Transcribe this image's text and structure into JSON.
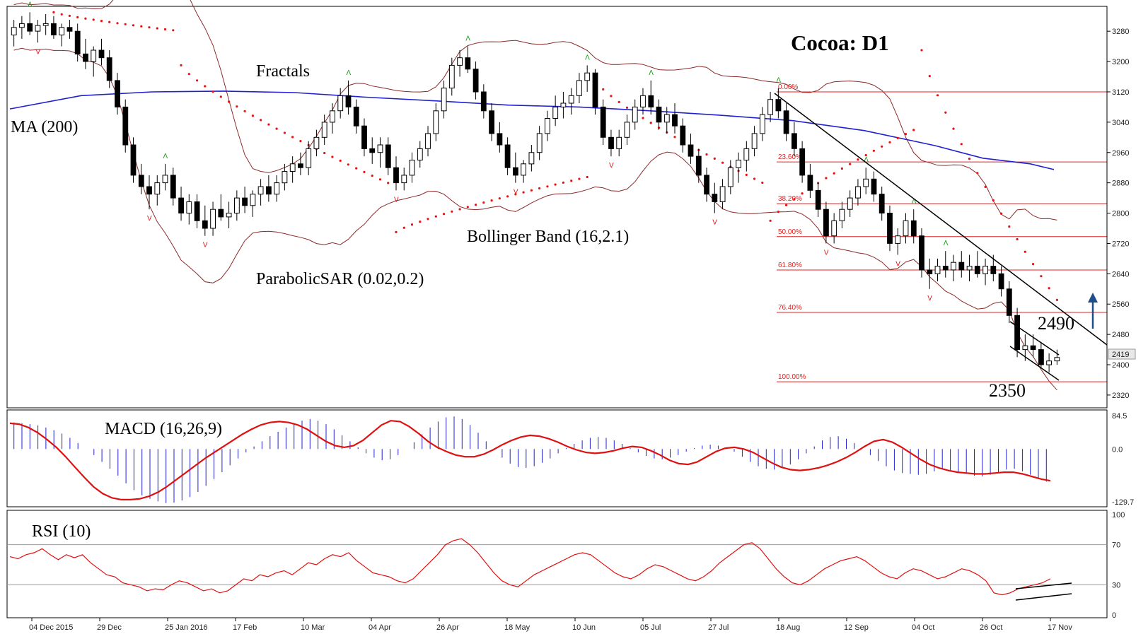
{
  "chart_data": {
    "type": "candlestick",
    "title": "Cocoa: D1",
    "instrument": "Cocoa",
    "timeframe": "D1",
    "price_axis": {
      "ticks": [
        2320,
        2400,
        2480,
        2560,
        2640,
        2720,
        2800,
        2880,
        2960,
        3040,
        3120,
        3200,
        3280
      ],
      "range": [
        2290,
        3340
      ]
    },
    "current_price": "2419",
    "dates": [
      "04 Dec 2015",
      "29 Dec",
      "25 Jan 2016",
      "17 Feb",
      "10 Mar",
      "04 Apr",
      "26 Apr",
      "18 May",
      "10 Jun",
      "05 Jul",
      "27 Jul",
      "18 Aug",
      "12 Sep",
      "04 Oct",
      "26 Oct",
      "17 Nov"
    ],
    "indicators": {
      "ma": "MA (200)",
      "fractals": "Fractals",
      "bollinger": "Bollinger Band (16,2.1)",
      "sar": "ParabolicSAR (0.02,0.2)",
      "macd": "MACD (16,26,9)",
      "rsi": "RSI (10)"
    },
    "fibonacci": [
      {
        "label": "0.00%",
        "price": 3120
      },
      {
        "label": "23.60%",
        "price": 2935
      },
      {
        "label": "38.20%",
        "price": 2825
      },
      {
        "label": "50.00%",
        "price": 2738
      },
      {
        "label": "61.80%",
        "price": 2650
      },
      {
        "label": "76.40%",
        "price": 2538
      },
      {
        "label": "100.00%",
        "price": 2355
      }
    ],
    "annotations": {
      "resistance": "2490",
      "support": "2350"
    },
    "macd_axis": {
      "ticks": [
        "84.5",
        "0.0",
        "-129.7"
      ],
      "range": [
        -129.7,
        84.5
      ]
    },
    "rsi_axis": {
      "ticks": [
        "100",
        "70",
        "30",
        "0"
      ],
      "range": [
        0,
        100
      ]
    },
    "ma200": [
      {
        "i": 0,
        "p": 3075
      },
      {
        "i": 60,
        "p": 3110
      },
      {
        "i": 120,
        "p": 3120
      },
      {
        "i": 180,
        "p": 3122
      },
      {
        "i": 240,
        "p": 3118
      },
      {
        "i": 300,
        "p": 3106
      },
      {
        "i": 360,
        "p": 3096
      },
      {
        "i": 420,
        "p": 3085
      },
      {
        "i": 480,
        "p": 3080
      },
      {
        "i": 540,
        "p": 3070
      },
      {
        "i": 600,
        "p": 3058
      },
      {
        "i": 660,
        "p": 3044
      },
      {
        "i": 720,
        "p": 3018
      },
      {
        "i": 780,
        "p": 2978
      },
      {
        "i": 820,
        "p": 2945
      },
      {
        "i": 860,
        "p": 2930
      },
      {
        "i": 880,
        "p": 2915
      }
    ],
    "candles": [
      {
        "o": 3270,
        "h": 3310,
        "l": 3240,
        "c": 3290
      },
      {
        "o": 3290,
        "h": 3320,
        "l": 3260,
        "c": 3300
      },
      {
        "o": 3300,
        "h": 3330,
        "l": 3270,
        "c": 3280
      },
      {
        "o": 3280,
        "h": 3310,
        "l": 3250,
        "c": 3295
      },
      {
        "o": 3295,
        "h": 3325,
        "l": 3270,
        "c": 3300
      },
      {
        "o": 3300,
        "h": 3320,
        "l": 3260,
        "c": 3270
      },
      {
        "o": 3270,
        "h": 3300,
        "l": 3240,
        "c": 3290
      },
      {
        "o": 3290,
        "h": 3310,
        "l": 3260,
        "c": 3280
      },
      {
        "o": 3280,
        "h": 3300,
        "l": 3200,
        "c": 3220
      },
      {
        "o": 3220,
        "h": 3260,
        "l": 3180,
        "c": 3200
      },
      {
        "o": 3200,
        "h": 3240,
        "l": 3160,
        "c": 3230
      },
      {
        "o": 3230,
        "h": 3260,
        "l": 3190,
        "c": 3210
      },
      {
        "o": 3210,
        "h": 3230,
        "l": 3130,
        "c": 3150
      },
      {
        "o": 3150,
        "h": 3170,
        "l": 3060,
        "c": 3080
      },
      {
        "o": 3080,
        "h": 3100,
        "l": 2960,
        "c": 2980
      },
      {
        "o": 2980,
        "h": 3000,
        "l": 2880,
        "c": 2900
      },
      {
        "o": 2900,
        "h": 2930,
        "l": 2850,
        "c": 2870
      },
      {
        "o": 2870,
        "h": 2900,
        "l": 2810,
        "c": 2850
      },
      {
        "o": 2850,
        "h": 2900,
        "l": 2820,
        "c": 2880
      },
      {
        "o": 2880,
        "h": 2930,
        "l": 2860,
        "c": 2900
      },
      {
        "o": 2900,
        "h": 2920,
        "l": 2820,
        "c": 2840
      },
      {
        "o": 2840,
        "h": 2870,
        "l": 2780,
        "c": 2800
      },
      {
        "o": 2800,
        "h": 2850,
        "l": 2770,
        "c": 2830
      },
      {
        "o": 2830,
        "h": 2850,
        "l": 2760,
        "c": 2780
      },
      {
        "o": 2780,
        "h": 2820,
        "l": 2740,
        "c": 2760
      },
      {
        "o": 2760,
        "h": 2830,
        "l": 2740,
        "c": 2810
      },
      {
        "o": 2810,
        "h": 2850,
        "l": 2780,
        "c": 2790
      },
      {
        "o": 2790,
        "h": 2830,
        "l": 2760,
        "c": 2800
      },
      {
        "o": 2800,
        "h": 2860,
        "l": 2780,
        "c": 2840
      },
      {
        "o": 2840,
        "h": 2870,
        "l": 2800,
        "c": 2820
      },
      {
        "o": 2820,
        "h": 2860,
        "l": 2790,
        "c": 2850
      },
      {
        "o": 2850,
        "h": 2890,
        "l": 2820,
        "c": 2870
      },
      {
        "o": 2870,
        "h": 2900,
        "l": 2830,
        "c": 2850
      },
      {
        "o": 2850,
        "h": 2900,
        "l": 2830,
        "c": 2880
      },
      {
        "o": 2880,
        "h": 2930,
        "l": 2860,
        "c": 2910
      },
      {
        "o": 2910,
        "h": 2950,
        "l": 2880,
        "c": 2930
      },
      {
        "o": 2930,
        "h": 2960,
        "l": 2900,
        "c": 2920
      },
      {
        "o": 2920,
        "h": 2990,
        "l": 2900,
        "c": 2970
      },
      {
        "o": 2970,
        "h": 3020,
        "l": 2950,
        "c": 3000
      },
      {
        "o": 3000,
        "h": 3060,
        "l": 2980,
        "c": 3040
      },
      {
        "o": 3040,
        "h": 3090,
        "l": 3010,
        "c": 3070
      },
      {
        "o": 3070,
        "h": 3130,
        "l": 3050,
        "c": 3110
      },
      {
        "o": 3110,
        "h": 3150,
        "l": 3060,
        "c": 3080
      },
      {
        "o": 3080,
        "h": 3100,
        "l": 3010,
        "c": 3030
      },
      {
        "o": 3030,
        "h": 3050,
        "l": 2950,
        "c": 2970
      },
      {
        "o": 2970,
        "h": 3000,
        "l": 2930,
        "c": 2960
      },
      {
        "o": 2960,
        "h": 3000,
        "l": 2920,
        "c": 2980
      },
      {
        "o": 2980,
        "h": 3000,
        "l": 2900,
        "c": 2920
      },
      {
        "o": 2920,
        "h": 2950,
        "l": 2860,
        "c": 2880
      },
      {
        "o": 2880,
        "h": 2920,
        "l": 2860,
        "c": 2900
      },
      {
        "o": 2900,
        "h": 2960,
        "l": 2880,
        "c": 2940
      },
      {
        "o": 2940,
        "h": 2990,
        "l": 2920,
        "c": 2970
      },
      {
        "o": 2970,
        "h": 3030,
        "l": 2950,
        "c": 3010
      },
      {
        "o": 3010,
        "h": 3090,
        "l": 2990,
        "c": 3070
      },
      {
        "o": 3070,
        "h": 3150,
        "l": 3050,
        "c": 3130
      },
      {
        "o": 3130,
        "h": 3210,
        "l": 3110,
        "c": 3190
      },
      {
        "o": 3190,
        "h": 3230,
        "l": 3160,
        "c": 3210
      },
      {
        "o": 3210,
        "h": 3240,
        "l": 3170,
        "c": 3180
      },
      {
        "o": 3180,
        "h": 3200,
        "l": 3100,
        "c": 3120
      },
      {
        "o": 3120,
        "h": 3140,
        "l": 3050,
        "c": 3070
      },
      {
        "o": 3070,
        "h": 3090,
        "l": 2990,
        "c": 3010
      },
      {
        "o": 3010,
        "h": 3040,
        "l": 2960,
        "c": 2980
      },
      {
        "o": 2980,
        "h": 3000,
        "l": 2900,
        "c": 2920
      },
      {
        "o": 2920,
        "h": 2960,
        "l": 2880,
        "c": 2900
      },
      {
        "o": 2900,
        "h": 2940,
        "l": 2880,
        "c": 2930
      },
      {
        "o": 2930,
        "h": 2980,
        "l": 2910,
        "c": 2960
      },
      {
        "o": 2960,
        "h": 3030,
        "l": 2940,
        "c": 3010
      },
      {
        "o": 3010,
        "h": 3070,
        "l": 2990,
        "c": 3050
      },
      {
        "o": 3050,
        "h": 3110,
        "l": 3030,
        "c": 3080
      },
      {
        "o": 3080,
        "h": 3120,
        "l": 3050,
        "c": 3090
      },
      {
        "o": 3090,
        "h": 3130,
        "l": 3060,
        "c": 3110
      },
      {
        "o": 3110,
        "h": 3170,
        "l": 3090,
        "c": 3150
      },
      {
        "o": 3150,
        "h": 3190,
        "l": 3120,
        "c": 3170
      },
      {
        "o": 3170,
        "h": 3180,
        "l": 3060,
        "c": 3080
      },
      {
        "o": 3080,
        "h": 3100,
        "l": 2980,
        "c": 3000
      },
      {
        "o": 3000,
        "h": 3020,
        "l": 2950,
        "c": 2970
      },
      {
        "o": 2970,
        "h": 3020,
        "l": 2950,
        "c": 3000
      },
      {
        "o": 3000,
        "h": 3060,
        "l": 2980,
        "c": 3040
      },
      {
        "o": 3040,
        "h": 3100,
        "l": 3020,
        "c": 3080
      },
      {
        "o": 3080,
        "h": 3130,
        "l": 3060,
        "c": 3110
      },
      {
        "o": 3110,
        "h": 3150,
        "l": 3060,
        "c": 3080
      },
      {
        "o": 3080,
        "h": 3100,
        "l": 3020,
        "c": 3040
      },
      {
        "o": 3040,
        "h": 3080,
        "l": 3010,
        "c": 3060
      },
      {
        "o": 3060,
        "h": 3090,
        "l": 3010,
        "c": 3030
      },
      {
        "o": 3030,
        "h": 3050,
        "l": 2960,
        "c": 2980
      },
      {
        "o": 2980,
        "h": 3010,
        "l": 2930,
        "c": 2950
      },
      {
        "o": 2950,
        "h": 2970,
        "l": 2880,
        "c": 2900
      },
      {
        "o": 2900,
        "h": 2920,
        "l": 2830,
        "c": 2850
      },
      {
        "o": 2850,
        "h": 2880,
        "l": 2800,
        "c": 2830
      },
      {
        "o": 2830,
        "h": 2890,
        "l": 2810,
        "c": 2870
      },
      {
        "o": 2870,
        "h": 2940,
        "l": 2850,
        "c": 2920
      },
      {
        "o": 2920,
        "h": 2960,
        "l": 2880,
        "c": 2940
      },
      {
        "o": 2940,
        "h": 2990,
        "l": 2910,
        "c": 2970
      },
      {
        "o": 2970,
        "h": 3030,
        "l": 2950,
        "c": 3010
      },
      {
        "o": 3010,
        "h": 3080,
        "l": 2990,
        "c": 3060
      },
      {
        "o": 3060,
        "h": 3120,
        "l": 3040,
        "c": 3100
      },
      {
        "o": 3100,
        "h": 3130,
        "l": 3050,
        "c": 3070
      },
      {
        "o": 3070,
        "h": 3090,
        "l": 2990,
        "c": 3010
      },
      {
        "o": 3010,
        "h": 3040,
        "l": 2950,
        "c": 2970
      },
      {
        "o": 2970,
        "h": 2990,
        "l": 2880,
        "c": 2900
      },
      {
        "o": 2900,
        "h": 2930,
        "l": 2840,
        "c": 2860
      },
      {
        "o": 2860,
        "h": 2880,
        "l": 2790,
        "c": 2810
      },
      {
        "o": 2810,
        "h": 2830,
        "l": 2720,
        "c": 2740
      },
      {
        "o": 2740,
        "h": 2800,
        "l": 2720,
        "c": 2780
      },
      {
        "o": 2780,
        "h": 2830,
        "l": 2760,
        "c": 2810
      },
      {
        "o": 2810,
        "h": 2860,
        "l": 2790,
        "c": 2840
      },
      {
        "o": 2840,
        "h": 2890,
        "l": 2820,
        "c": 2870
      },
      {
        "o": 2870,
        "h": 2920,
        "l": 2850,
        "c": 2890
      },
      {
        "o": 2890,
        "h": 2910,
        "l": 2830,
        "c": 2850
      },
      {
        "o": 2850,
        "h": 2870,
        "l": 2780,
        "c": 2800
      },
      {
        "o": 2800,
        "h": 2820,
        "l": 2700,
        "c": 2720
      },
      {
        "o": 2720,
        "h": 2760,
        "l": 2690,
        "c": 2740
      },
      {
        "o": 2740,
        "h": 2800,
        "l": 2720,
        "c": 2780
      },
      {
        "o": 2780,
        "h": 2810,
        "l": 2720,
        "c": 2740
      },
      {
        "o": 2740,
        "h": 2760,
        "l": 2630,
        "c": 2650
      },
      {
        "o": 2650,
        "h": 2680,
        "l": 2600,
        "c": 2640
      },
      {
        "o": 2640,
        "h": 2680,
        "l": 2620,
        "c": 2660
      },
      {
        "o": 2660,
        "h": 2700,
        "l": 2630,
        "c": 2650
      },
      {
        "o": 2650,
        "h": 2690,
        "l": 2620,
        "c": 2670
      },
      {
        "o": 2670,
        "h": 2700,
        "l": 2630,
        "c": 2650
      },
      {
        "o": 2650,
        "h": 2690,
        "l": 2620,
        "c": 2660
      },
      {
        "o": 2660,
        "h": 2700,
        "l": 2630,
        "c": 2640
      },
      {
        "o": 2640,
        "h": 2680,
        "l": 2610,
        "c": 2660
      },
      {
        "o": 2660,
        "h": 2690,
        "l": 2620,
        "c": 2640
      },
      {
        "o": 2640,
        "h": 2660,
        "l": 2580,
        "c": 2600
      },
      {
        "o": 2600,
        "h": 2620,
        "l": 2510,
        "c": 2530
      },
      {
        "o": 2530,
        "h": 2550,
        "l": 2420,
        "c": 2440
      },
      {
        "o": 2440,
        "h": 2480,
        "l": 2410,
        "c": 2450
      },
      {
        "o": 2450,
        "h": 2480,
        "l": 2420,
        "c": 2440
      },
      {
        "o": 2440,
        "h": 2460,
        "l": 2390,
        "c": 2400
      },
      {
        "o": 2400,
        "h": 2430,
        "l": 2380,
        "c": 2410
      },
      {
        "o": 2410,
        "h": 2440,
        "l": 2400,
        "c": 2419
      }
    ],
    "sar_segments": [
      {
        "from": 0.04,
        "to": 0.16,
        "start": 3330,
        "end": 3280
      },
      {
        "from": 0.16,
        "to": 0.36,
        "start": 3190,
        "end": 2870
      },
      {
        "from": 0.36,
        "to": 0.55,
        "start": 2750,
        "end": 2900
      },
      {
        "from": 0.55,
        "to": 0.72,
        "start": 3150,
        "end": 2870
      },
      {
        "from": 0.72,
        "to": 0.86,
        "start": 2780,
        "end": 3030
      },
      {
        "from": 0.86,
        "to": 1.0,
        "start": 3230,
        "end": 2540
      }
    ],
    "macd_hist": [
      62,
      60,
      58,
      55,
      50,
      44,
      36,
      26,
      14,
      0,
      -14,
      -30,
      -46,
      -62,
      -80,
      -96,
      -108,
      -116,
      -122,
      -126,
      -125,
      -120,
      -112,
      -100,
      -86,
      -70,
      -54,
      -38,
      -22,
      -8,
      6,
      18,
      30,
      40,
      50,
      60,
      66,
      70,
      66,
      58,
      46,
      32,
      18,
      4,
      -10,
      -20,
      -26,
      -24,
      -14,
      0,
      16,
      34,
      50,
      64,
      74,
      76,
      70,
      56,
      38,
      18,
      -2,
      -20,
      -34,
      -42,
      -44,
      -40,
      -32,
      -22,
      -10,
      2,
      12,
      20,
      26,
      28,
      26,
      20,
      12,
      2,
      -8,
      -16,
      -22,
      -24,
      -20,
      -14,
      -6,
      2,
      8,
      10,
      8,
      2,
      -6,
      -18,
      -30,
      -40,
      -46,
      -48,
      -44,
      -36,
      -24,
      -10,
      6,
      20,
      28,
      30,
      24,
      14,
      0,
      -14,
      -28,
      -40,
      -50,
      -56,
      -58,
      -60,
      -58,
      -52,
      -48,
      -50,
      -54,
      -58,
      -62,
      -64,
      -60,
      -54,
      -48,
      -46,
      -52,
      -60,
      -70,
      -76
    ],
    "macd_signal": [
      60,
      58,
      50,
      38,
      22,
      4,
      -18,
      -42,
      -66,
      -88,
      -104,
      -114,
      -118,
      -118,
      -116,
      -110,
      -100,
      -86,
      -70,
      -54,
      -38,
      -22,
      -8,
      6,
      20,
      34,
      46,
      56,
      62,
      64,
      62,
      56,
      46,
      32,
      18,
      8,
      4,
      8,
      20,
      38,
      56,
      66,
      64,
      52,
      36,
      18,
      4,
      -6,
      -14,
      -18,
      -18,
      -12,
      -2,
      10,
      20,
      28,
      32,
      30,
      24,
      16,
      6,
      -2,
      -8,
      -10,
      -8,
      -4,
      2,
      6,
      4,
      -4,
      -14,
      -26,
      -34,
      -36,
      -30,
      -18,
      -6,
      2,
      4,
      0,
      -8,
      -20,
      -32,
      -42,
      -48,
      -50,
      -48,
      -44,
      -38,
      -30,
      -20,
      -8,
      6,
      18,
      22,
      16,
      4,
      -10,
      -24,
      -36,
      -44,
      -50,
      -54,
      -56,
      -58,
      -58,
      -56,
      -54,
      -54,
      -58,
      -64,
      -70,
      -74
    ],
    "rsi": [
      58,
      56,
      60,
      62,
      66,
      60,
      55,
      60,
      57,
      60,
      52,
      46,
      40,
      38,
      32,
      30,
      28,
      24,
      26,
      25,
      30,
      34,
      32,
      28,
      24,
      26,
      22,
      24,
      30,
      36,
      34,
      40,
      38,
      42,
      44,
      40,
      46,
      52,
      50,
      56,
      60,
      58,
      62,
      54,
      48,
      42,
      40,
      38,
      34,
      32,
      36,
      44,
      52,
      60,
      70,
      74,
      76,
      70,
      62,
      52,
      42,
      34,
      30,
      28,
      34,
      40,
      44,
      48,
      52,
      56,
      60,
      62,
      60,
      54,
      48,
      42,
      38,
      36,
      40,
      46,
      50,
      48,
      44,
      40,
      36,
      34,
      38,
      44,
      52,
      58,
      64,
      70,
      72,
      66,
      56,
      46,
      38,
      32,
      30,
      34,
      40,
      46,
      50,
      54,
      56,
      58,
      54,
      48,
      42,
      38,
      36,
      42,
      46,
      44,
      40,
      36,
      38,
      42,
      46,
      44,
      40,
      34,
      22,
      20,
      22,
      26,
      28,
      30,
      32,
      36
    ]
  }
}
